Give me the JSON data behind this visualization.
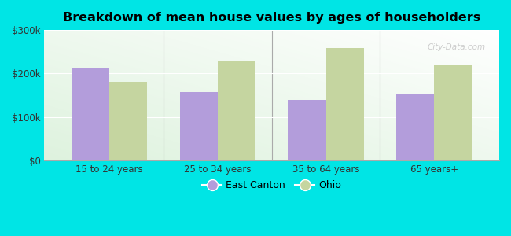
{
  "title": "Breakdown of mean house values by ages of householders",
  "categories": [
    "15 to 24 years",
    "25 to 34 years",
    "35 to 64 years",
    "65 years+"
  ],
  "east_canton": [
    213000,
    158000,
    140000,
    152000
  ],
  "ohio": [
    180000,
    230000,
    258000,
    220000
  ],
  "bar_color_ec": "#b39ddb",
  "bar_color_oh": "#c5d5a0",
  "ylim": [
    0,
    300000
  ],
  "yticks": [
    0,
    100000,
    200000,
    300000
  ],
  "ytick_labels": [
    "$0",
    "$100k",
    "$200k",
    "$300k"
  ],
  "background_color": "#00e5e5",
  "legend_ec": "East Canton",
  "legend_oh": "Ohio",
  "bar_width": 0.35
}
